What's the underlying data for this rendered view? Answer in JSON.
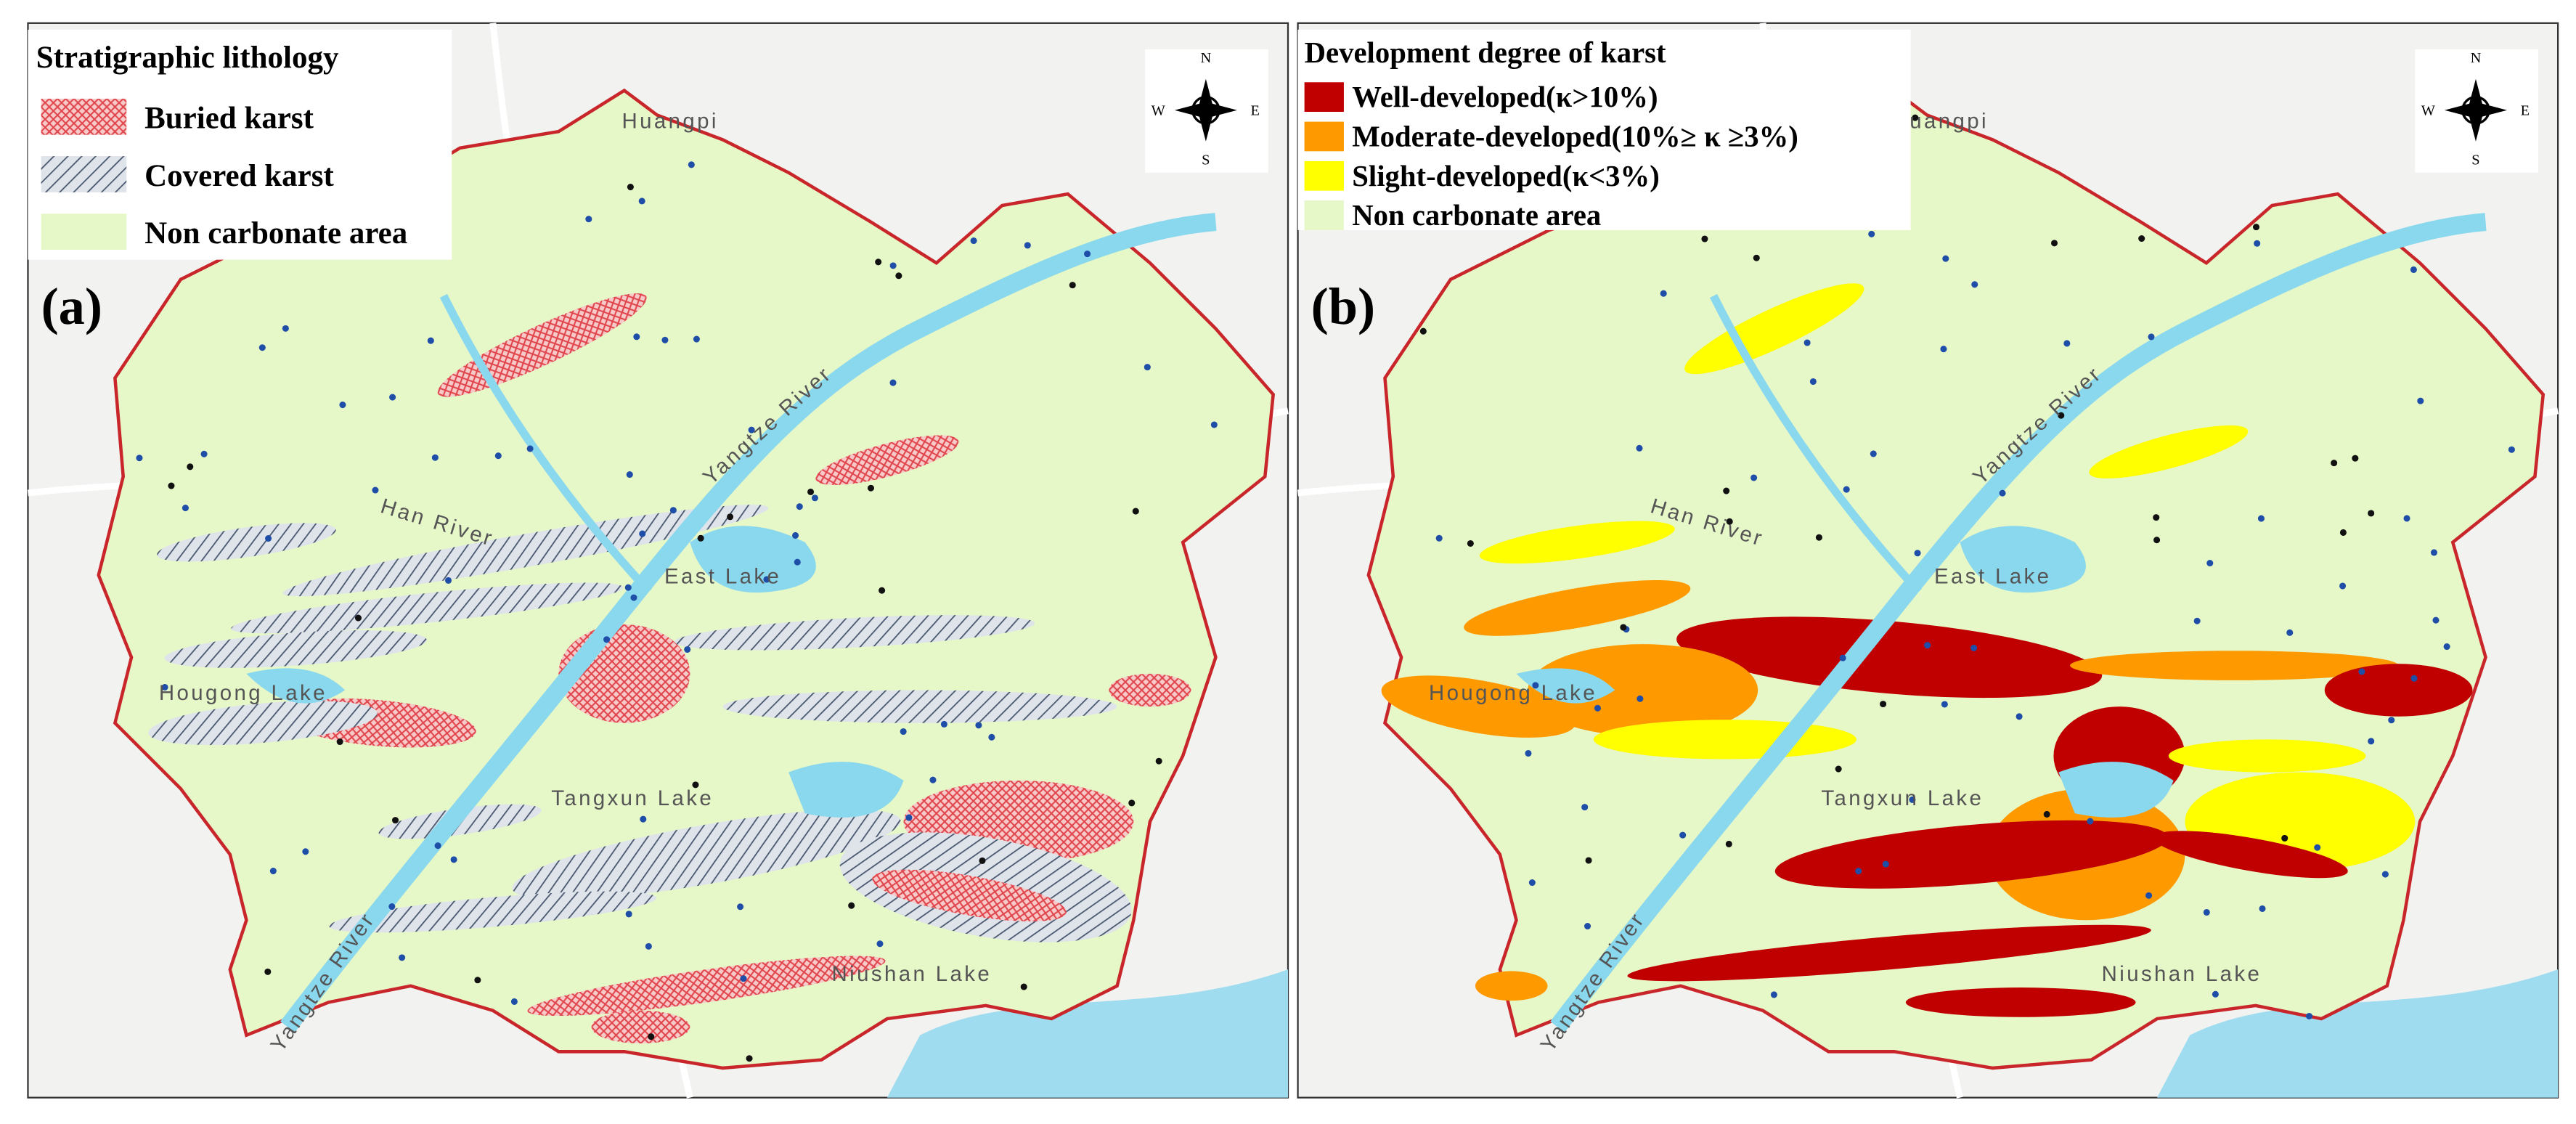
{
  "panels": [
    {
      "label": "(a)",
      "legend": {
        "title": "Stratigraphic lithology",
        "items": [
          "Buried karst",
          "Covered karst",
          "Non carbonate area"
        ]
      },
      "place_labels": [
        "Huangpi",
        "Han River",
        "Yangtze River",
        "East Lake",
        "Hougong Lake",
        "Tangxun Lake",
        "Yangtze River",
        "Niushan Lake"
      ]
    },
    {
      "label": "(b)",
      "legend": {
        "title": "Development degree of karst",
        "items": [
          "Well-developed(κ>10%)",
          "Moderate-developed(10%≥ κ ≥3%)",
          "Slight-developed(κ<3%)",
          "Non carbonate area"
        ]
      },
      "place_labels": [
        "Huangpi",
        "Han River",
        "Yangtze River",
        "East Lake",
        "Hougong Lake",
        "Tangxun Lake",
        "Yangtze River",
        "Niushan Lake"
      ]
    }
  ],
  "compass": {
    "n": "N",
    "s": "S",
    "w": "W",
    "e": "E"
  }
}
